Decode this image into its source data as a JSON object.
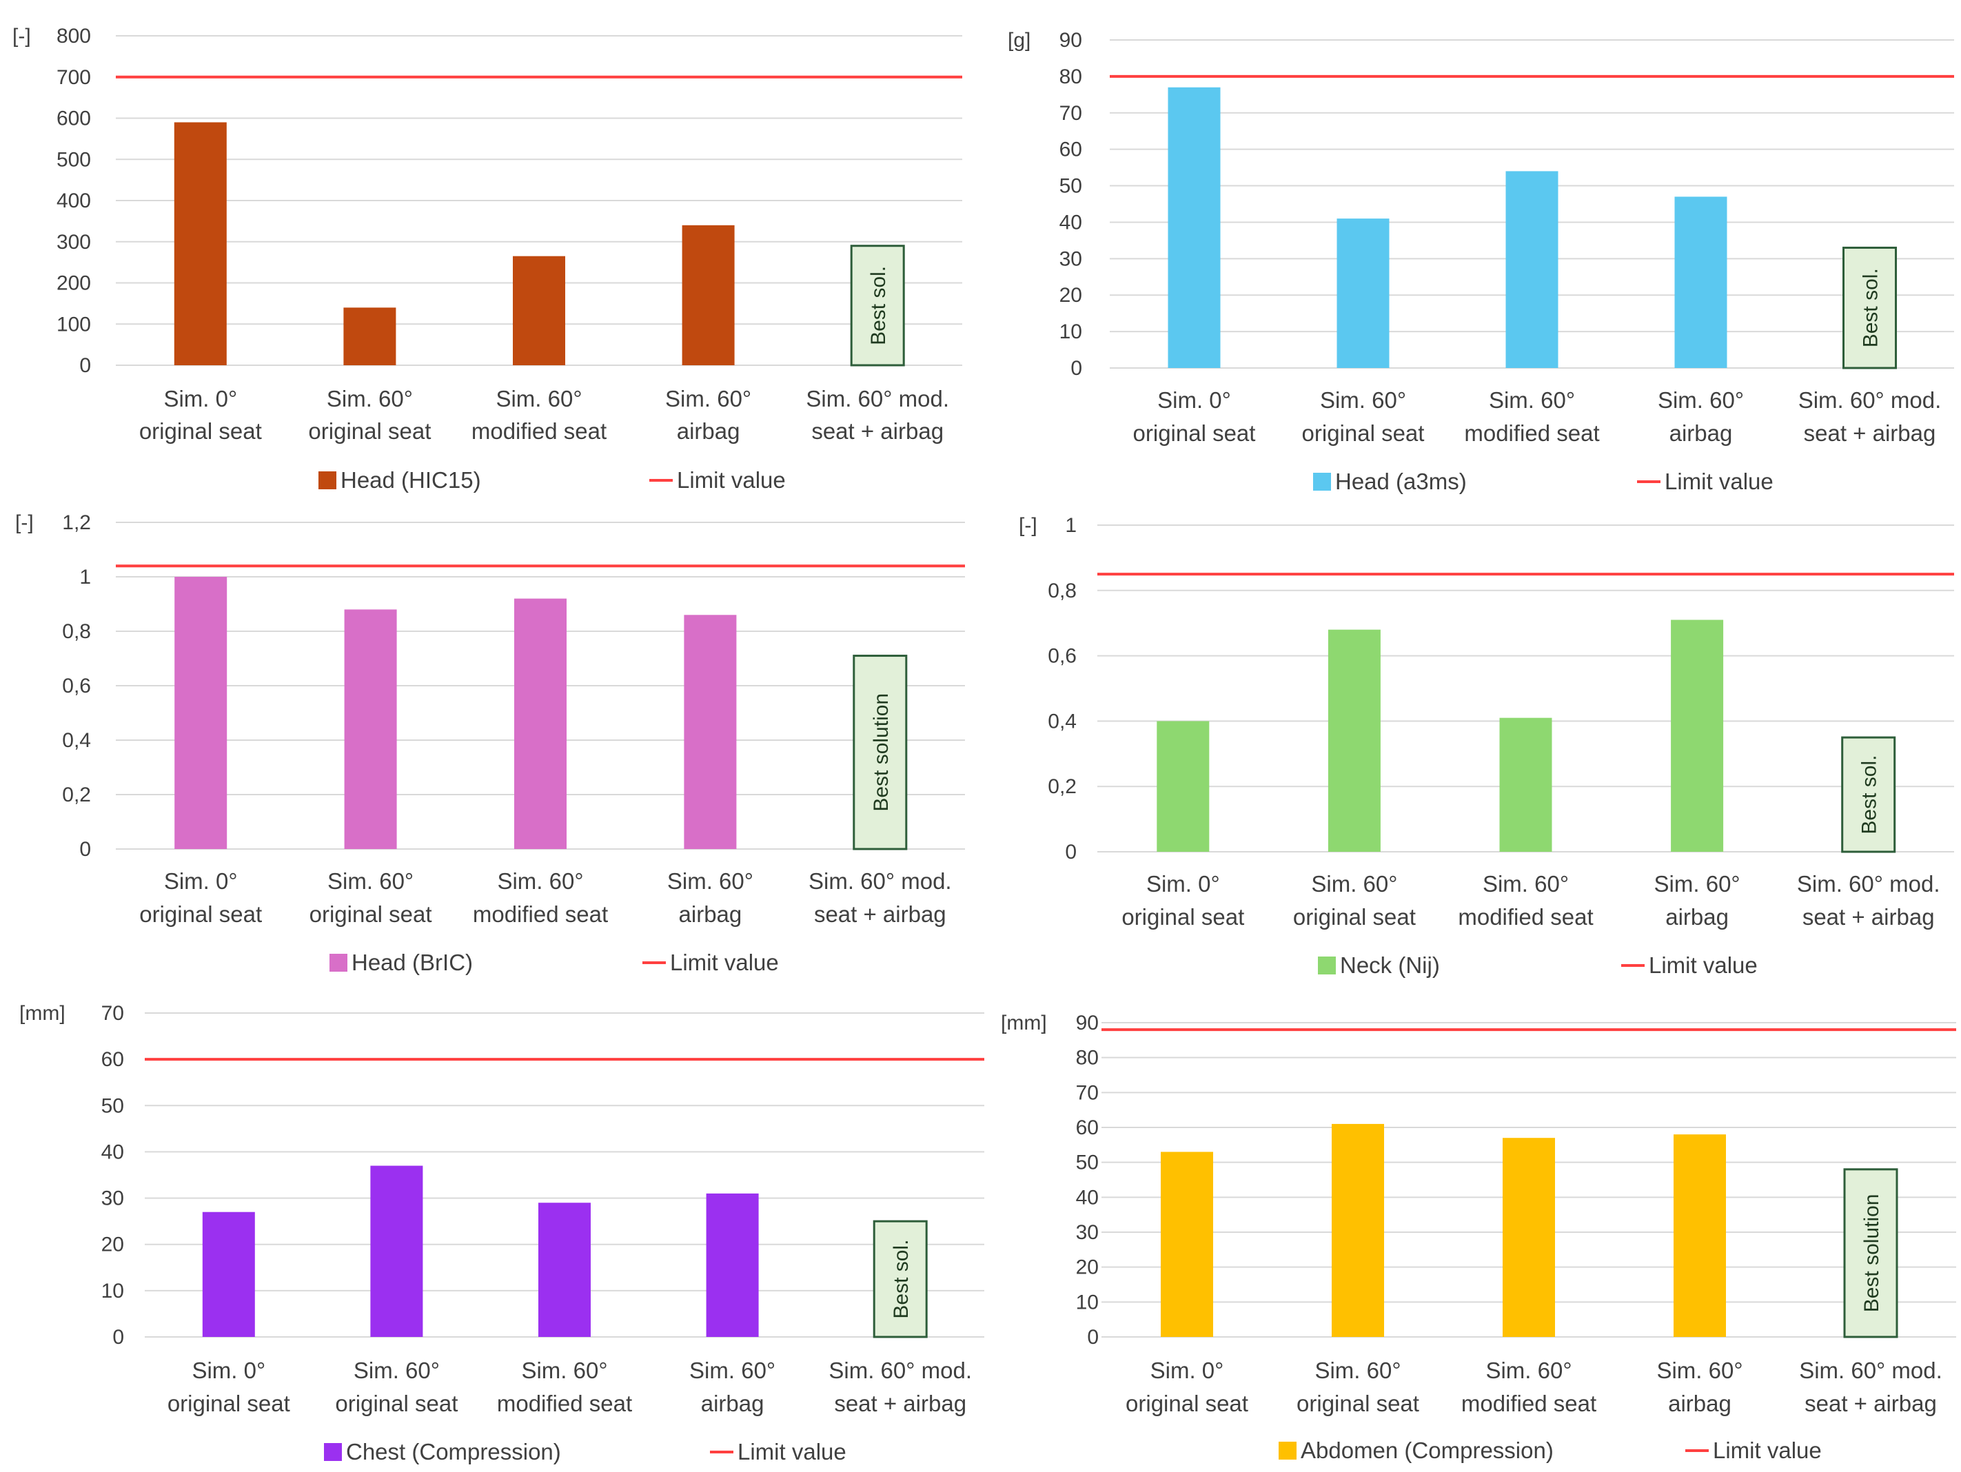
{
  "colors": {
    "grid": "#d9d9d9",
    "limit": "#ff4040",
    "best_fill": "#e2f0d9",
    "best_border": "#2e5e3a"
  },
  "chart_data": [
    {
      "type": "bar",
      "unit": "[-]",
      "ylim": [
        0,
        800
      ],
      "ystep": 100,
      "categories": [
        [
          "Sim. 0°",
          "original seat"
        ],
        [
          "Sim. 60°",
          "original seat"
        ],
        [
          "Sim. 60°",
          "modified seat"
        ],
        [
          "Sim. 60°",
          "airbag"
        ],
        [
          "Sim. 60° mod.",
          "seat + airbag"
        ]
      ],
      "values": [
        590,
        140,
        265,
        340,
        null
      ],
      "series_name": "Head (HIC15)",
      "color": "#c0490f",
      "limit": 700,
      "limit_name": "Limit value",
      "best_label": "Best sol.",
      "best_height": 290
    },
    {
      "type": "bar",
      "unit": "[g]",
      "ylim": [
        0,
        90
      ],
      "ystep": 10,
      "categories": [
        [
          "Sim. 0°",
          "original seat"
        ],
        [
          "Sim. 60°",
          "original seat"
        ],
        [
          "Sim. 60°",
          "modified seat"
        ],
        [
          "Sim. 60°",
          "airbag"
        ],
        [
          "Sim. 60° mod.",
          "seat + airbag"
        ]
      ],
      "values": [
        77,
        41,
        54,
        47,
        null
      ],
      "series_name": "Head (a3ms)",
      "color": "#5bc8f0",
      "limit": 80,
      "limit_name": "Limit value",
      "best_label": "Best sol.",
      "best_height": 33
    },
    {
      "type": "bar",
      "unit": "[-]",
      "ylim": [
        0,
        1.2
      ],
      "ystep": 0.2,
      "categories": [
        [
          "Sim. 0°",
          "original seat"
        ],
        [
          "Sim. 60°",
          "original seat"
        ],
        [
          "Sim. 60°",
          "modified seat"
        ],
        [
          "Sim. 60°",
          "airbag"
        ],
        [
          "Sim. 60° mod.",
          "seat + airbag"
        ]
      ],
      "values": [
        1.0,
        0.88,
        0.92,
        0.86,
        null
      ],
      "series_name": "Head (BrIC)",
      "color": "#d86fc8",
      "limit": 1.04,
      "limit_name": "Limit value",
      "best_label": "Best solution",
      "best_height": 0.71
    },
    {
      "type": "bar",
      "unit": "[-]",
      "ylim": [
        0,
        1
      ],
      "ystep": 0.2,
      "categories": [
        [
          "Sim. 0°",
          "original seat"
        ],
        [
          "Sim. 60°",
          "original seat"
        ],
        [
          "Sim. 60°",
          "modified seat"
        ],
        [
          "Sim. 60°",
          "airbag"
        ],
        [
          "Sim. 60° mod.",
          "seat + airbag"
        ]
      ],
      "values": [
        0.4,
        0.68,
        0.41,
        0.71,
        null
      ],
      "series_name": "Neck (Nij)",
      "color": "#8ed870",
      "limit": 0.85,
      "limit_name": "Limit value",
      "best_label": "Best sol.",
      "best_height": 0.35
    },
    {
      "type": "bar",
      "unit": "[mm]",
      "ylim": [
        0,
        70
      ],
      "ystep": 10,
      "categories": [
        [
          "Sim. 0°",
          "original seat"
        ],
        [
          "Sim. 60°",
          "original seat"
        ],
        [
          "Sim. 60°",
          "modified seat"
        ],
        [
          "Sim. 60°",
          "airbag"
        ],
        [
          "Sim. 60° mod.",
          "seat + airbag"
        ]
      ],
      "values": [
        27,
        37,
        29,
        31,
        null
      ],
      "series_name": "Chest (Compression)",
      "color": "#9b30f0",
      "limit": 60,
      "limit_name": "Limit value",
      "best_label": "Best sol.",
      "best_height": 25
    },
    {
      "type": "bar",
      "unit": "[mm]",
      "ylim": [
        0,
        90
      ],
      "ystep": 10,
      "categories": [
        [
          "Sim. 0°",
          "original seat"
        ],
        [
          "Sim. 60°",
          "original seat"
        ],
        [
          "Sim. 60°",
          "modified seat"
        ],
        [
          "Sim. 60°",
          "airbag"
        ],
        [
          "Sim. 60° mod.",
          "seat + airbag"
        ]
      ],
      "values": [
        53,
        61,
        57,
        58,
        null
      ],
      "series_name": "Abdomen (Compression)",
      "color": "#ffc000",
      "limit": 88,
      "limit_name": "Limit value",
      "best_label": "Best solution",
      "best_height": 48
    }
  ]
}
